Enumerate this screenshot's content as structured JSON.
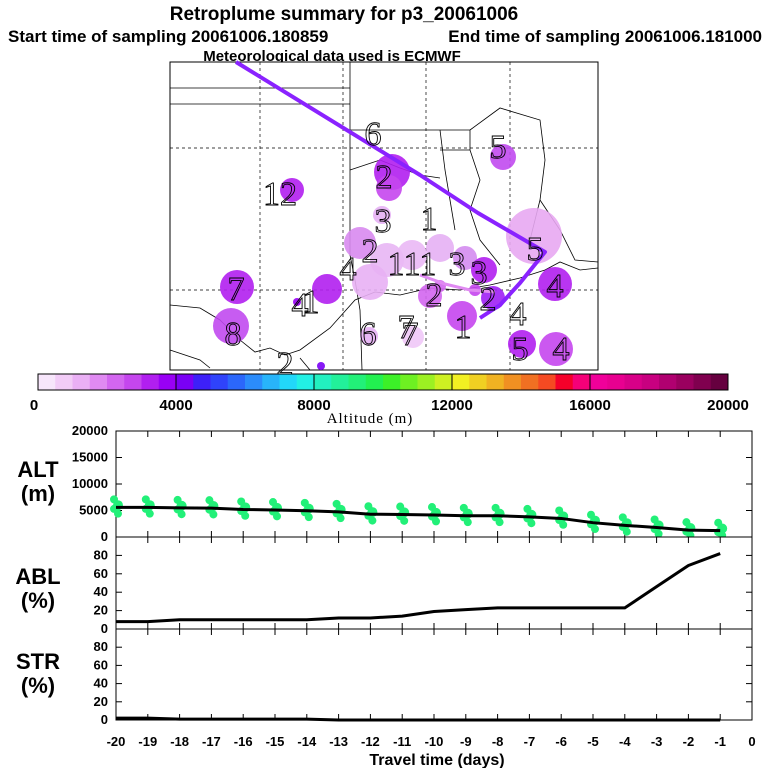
{
  "title": "Retroplume summary for p3_20061006",
  "subtitle_start": "Start time of sampling 20061006.180859",
  "subtitle_end": "End time of sampling 20061006.181000",
  "subtitle_met": "Meteorological data used is ECMWF",
  "colorbar": {
    "label": "Altitude (m)",
    "ticks": [
      "0",
      "4000",
      "8000",
      "12000",
      "16000",
      "20000"
    ],
    "colors": [
      "#f7e6fb",
      "#f2ccf7",
      "#eab0f5",
      "#e08af2",
      "#d366f0",
      "#c546ee",
      "#b11ff0",
      "#9900f5",
      "#7a00f5",
      "#3d20f8",
      "#2f43fb",
      "#2b67fb",
      "#2b8cfb",
      "#28b4fa",
      "#22d8f9",
      "#22f0e4",
      "#22f0c0",
      "#22f09a",
      "#22f078",
      "#22f050",
      "#3cf028",
      "#6ef022",
      "#9cf022",
      "#cdf022",
      "#f2f022",
      "#f0d022",
      "#f0b222",
      "#f09022",
      "#f07022",
      "#f54a22",
      "#f5002a",
      "#f50078",
      "#f0009a",
      "#e80090",
      "#d80088",
      "#c80080",
      "#b00070",
      "#9a005f",
      "#80004f",
      "#66003f"
    ]
  },
  "map": {
    "trajectory_color": "#8a22ff",
    "day_labels": [
      "6",
      "5",
      "12",
      "2",
      "3",
      "1",
      "5",
      "2",
      "11",
      "3",
      "3",
      "2",
      "7",
      "1",
      "4",
      "4",
      "1",
      "4",
      "7",
      "8",
      "6",
      "7",
      "2",
      "4",
      "5",
      "4",
      "1",
      "2"
    ]
  },
  "panels": {
    "alt": {
      "label1": "ALT",
      "label2": "(m)"
    },
    "abl": {
      "label1": "ABL",
      "label2": "(%)"
    },
    "str": {
      "label1": "STR",
      "label2": "(%)"
    }
  },
  "xaxis_label": "Travel time (days)",
  "chart_data": [
    {
      "type": "line",
      "name": "ALT",
      "x": [
        -20,
        -19,
        -18,
        -17,
        -16,
        -15,
        -14,
        -13,
        -12,
        -11,
        -10,
        -9,
        -8,
        -7,
        -6,
        -5,
        -4,
        -3,
        -2,
        -1
      ],
      "values": [
        5600,
        5600,
        5500,
        5450,
        5200,
        5100,
        4950,
        4750,
        4300,
        4250,
        4150,
        4000,
        4000,
        3800,
        3500,
        2700,
        2200,
        1800,
        1300,
        1200
      ],
      "scatter_color": "#22f078",
      "ylim": [
        0,
        20000
      ],
      "yticks": [
        "0",
        "5000",
        "10000",
        "15000",
        "20000"
      ],
      "ylabel": "ALT (m)",
      "xlim": [
        -20,
        0
      ]
    },
    {
      "type": "line",
      "name": "ABL",
      "x": [
        -20,
        -19,
        -18,
        -17,
        -16,
        -15,
        -14,
        -13,
        -12,
        -11,
        -10,
        -9,
        -8,
        -7,
        -6,
        -5,
        -4,
        -3,
        -2,
        -1
      ],
      "values": [
        8,
        8,
        10,
        10,
        10,
        10,
        10,
        12,
        12,
        14,
        19,
        21,
        23,
        23,
        23,
        23,
        23,
        46,
        69,
        82
      ],
      "ylim": [
        0,
        100
      ],
      "yticks": [
        "0",
        "20",
        "40",
        "60",
        "80"
      ],
      "ylabel": "ABL (%)",
      "xlim": [
        -20,
        0
      ]
    },
    {
      "type": "line",
      "name": "STR",
      "x": [
        -20,
        -19,
        -18,
        -17,
        -16,
        -15,
        -14,
        -13,
        -12,
        -11,
        -10,
        -9,
        -8,
        -7,
        -6,
        -5,
        -4,
        -3,
        -2,
        -1
      ],
      "values": [
        2,
        2,
        1,
        1,
        1,
        1,
        1,
        0,
        0,
        0,
        0,
        0,
        0,
        0,
        0,
        0,
        0,
        0,
        0,
        0
      ],
      "ylim": [
        0,
        100
      ],
      "yticks": [
        "0",
        "20",
        "40",
        "60",
        "80"
      ],
      "ylabel": "STR (%)",
      "xlim": [
        -20,
        0
      ]
    }
  ],
  "xticks": [
    "-20",
    "-19",
    "-18",
    "-17",
    "-16",
    "-15",
    "-14",
    "-13",
    "-12",
    "-11",
    "-10",
    "-9",
    "-8",
    "-7",
    "-6",
    "-5",
    "-4",
    "-3",
    "-2",
    "-1",
    "0"
  ]
}
